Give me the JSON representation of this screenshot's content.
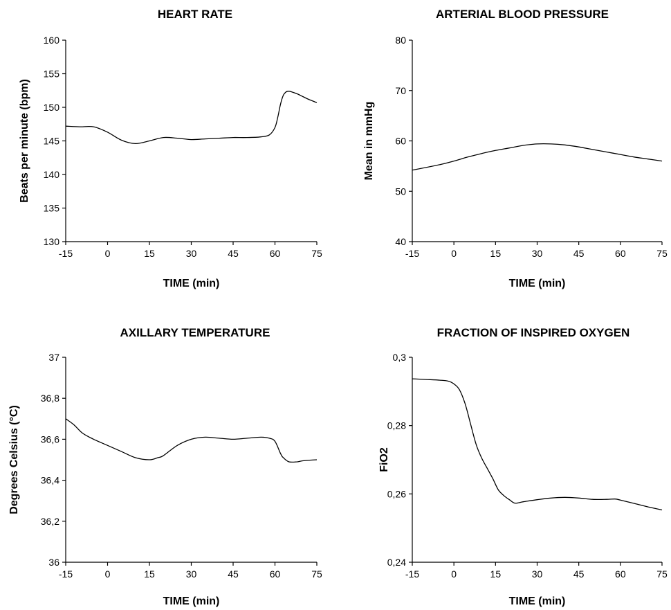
{
  "chart_data": [
    {
      "type": "line",
      "title": "HEART RATE",
      "xlabel": "TIME (min)",
      "ylabel": "Beats per minute (bpm)",
      "x_ticks": [
        "-15",
        "0",
        "15",
        "30",
        "45",
        "60",
        "75"
      ],
      "y_ticks": [
        "130",
        "135",
        "140",
        "145",
        "150",
        "155",
        "160"
      ],
      "xlim": [
        -15,
        75
      ],
      "ylim": [
        130,
        160
      ],
      "grid": false,
      "series": [
        {
          "x": [
            -15,
            -10,
            -5,
            0,
            5,
            10,
            15,
            20,
            25,
            30,
            35,
            40,
            45,
            50,
            55,
            58,
            60,
            61,
            62,
            63,
            64,
            65,
            66,
            68,
            70,
            72,
            75
          ],
          "y": [
            147.2,
            147.1,
            147.1,
            146.3,
            145.1,
            144.6,
            145.0,
            145.5,
            145.4,
            145.2,
            145.3,
            145.4,
            145.5,
            145.5,
            145.6,
            145.9,
            147.0,
            148.5,
            150.5,
            151.8,
            152.3,
            152.4,
            152.3,
            152.0,
            151.6,
            151.2,
            150.7
          ]
        }
      ]
    },
    {
      "type": "line",
      "title": "ARTERIAL BLOOD PRESSURE",
      "xlabel": "TIME (min)",
      "ylabel": "Mean in mmHg",
      "x_ticks": [
        "-15",
        "0",
        "15",
        "30",
        "45",
        "60",
        "75"
      ],
      "y_ticks": [
        "40",
        "50",
        "60",
        "70",
        "80"
      ],
      "xlim": [
        -15,
        75
      ],
      "ylim": [
        40,
        80
      ],
      "grid": false,
      "series": [
        {
          "x": [
            -15,
            -5,
            0,
            5,
            10,
            15,
            20,
            25,
            30,
            35,
            40,
            45,
            50,
            55,
            60,
            65,
            70,
            75
          ],
          "y": [
            54.2,
            55.3,
            56.0,
            56.8,
            57.5,
            58.1,
            58.6,
            59.1,
            59.4,
            59.4,
            59.2,
            58.8,
            58.3,
            57.8,
            57.3,
            56.8,
            56.4,
            56.0
          ]
        }
      ]
    },
    {
      "type": "line",
      "title": "AXILLARY TEMPERATURE",
      "xlabel": "TIME (min)",
      "ylabel": "Degrees Celsius (°C)",
      "x_ticks": [
        "-15",
        "0",
        "15",
        "30",
        "45",
        "60",
        "75"
      ],
      "y_ticks": [
        "36",
        "36,2",
        "36,4",
        "36,6",
        "36,8",
        "37"
      ],
      "xlim": [
        -15,
        75
      ],
      "ylim": [
        36,
        37
      ],
      "grid": false,
      "series": [
        {
          "x": [
            -15,
            -12,
            -9,
            -5,
            0,
            5,
            10,
            15,
            18,
            20,
            25,
            30,
            35,
            40,
            45,
            50,
            55,
            58,
            60,
            62,
            63,
            65,
            68,
            70,
            75
          ],
          "y": [
            36.7,
            36.67,
            36.63,
            36.6,
            36.57,
            36.54,
            36.51,
            36.5,
            36.51,
            36.52,
            36.57,
            36.6,
            36.61,
            36.605,
            36.6,
            36.605,
            36.61,
            36.605,
            36.59,
            36.53,
            36.51,
            36.49,
            36.49,
            36.495,
            36.5
          ]
        }
      ]
    },
    {
      "type": "line",
      "title": "FRACTION OF INSPIRED OXYGEN",
      "xlabel": "TIME (min)",
      "ylabel": "FiO2",
      "x_ticks": [
        "-15",
        "0",
        "15",
        "30",
        "45",
        "60",
        "75"
      ],
      "y_ticks": [
        "0,24",
        "0,26",
        "0,28",
        "0,3"
      ],
      "xlim": [
        -15,
        75
      ],
      "ylim": [
        0.24,
        0.3
      ],
      "grid": false,
      "series": [
        {
          "x": [
            -15,
            -10,
            -5,
            -2,
            0,
            2,
            4,
            6,
            8,
            10,
            12,
            14,
            16,
            18,
            20,
            22,
            25,
            30,
            35,
            40,
            45,
            50,
            55,
            58,
            60,
            65,
            70,
            75
          ],
          "y": [
            0.2937,
            0.2935,
            0.2933,
            0.293,
            0.2922,
            0.2905,
            0.2865,
            0.2805,
            0.2745,
            0.2705,
            0.2675,
            0.2645,
            0.2612,
            0.2595,
            0.2583,
            0.2573,
            0.2577,
            0.2583,
            0.2588,
            0.259,
            0.2588,
            0.2584,
            0.2584,
            0.2585,
            0.2582,
            0.2572,
            0.2562,
            0.2553
          ]
        }
      ]
    }
  ]
}
